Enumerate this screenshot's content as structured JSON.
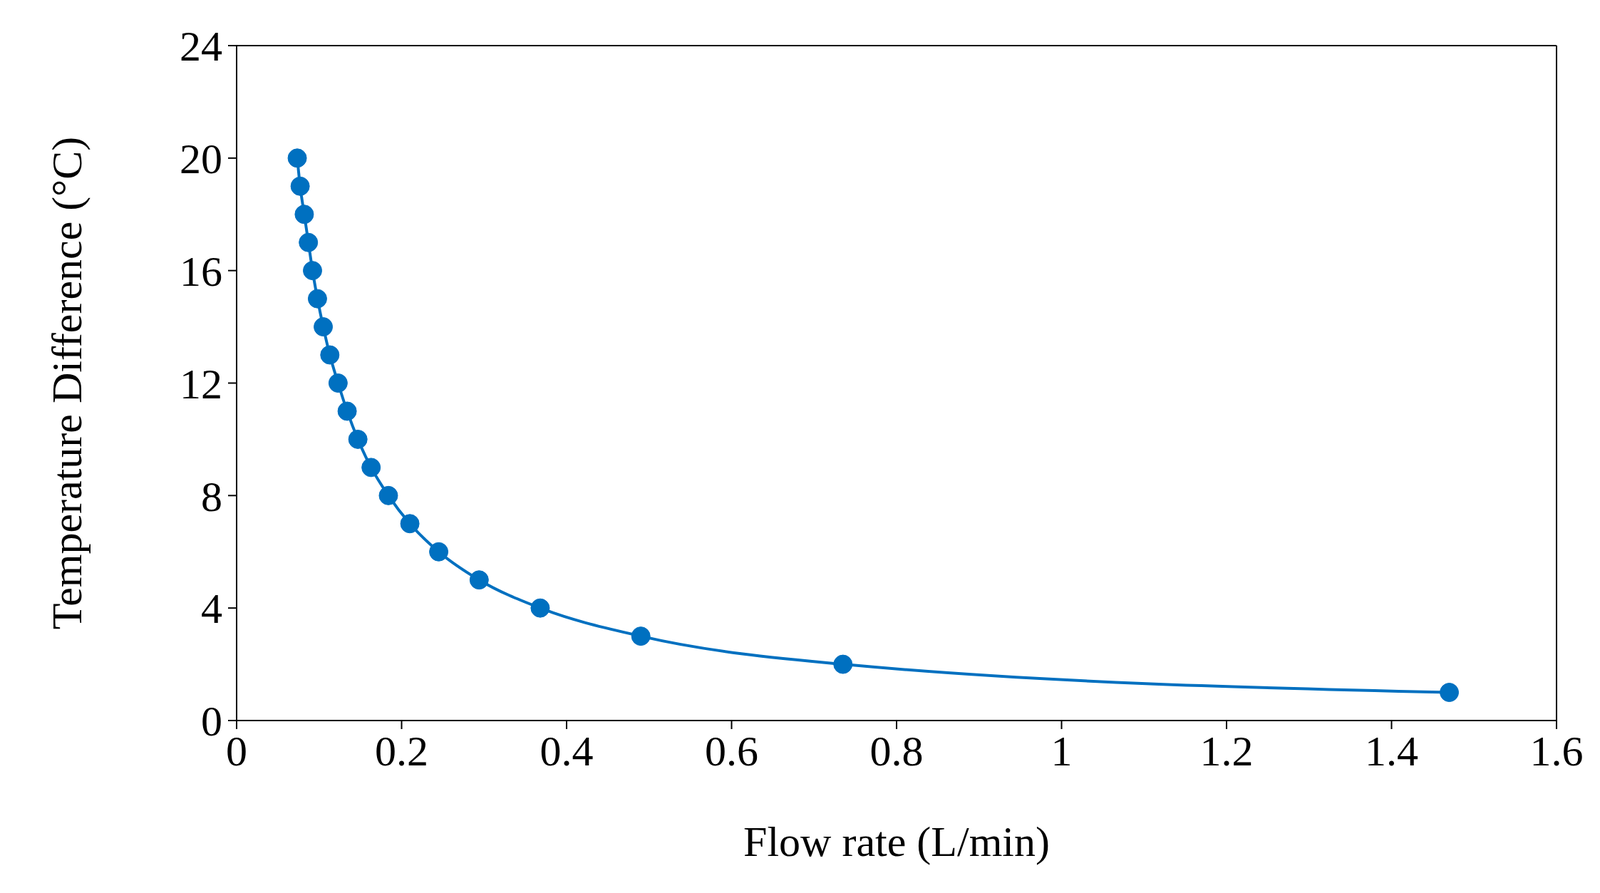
{
  "chart_data": {
    "type": "line",
    "x_label": "Flow rate (L/min)",
    "y_label": "Temperature Difference (°C)",
    "x": [
      0.0735,
      0.077,
      0.082,
      0.087,
      0.092,
      0.098,
      0.105,
      0.113,
      0.123,
      0.134,
      0.147,
      0.163,
      0.184,
      0.21,
      0.245,
      0.294,
      0.368,
      0.49,
      0.735,
      1.47
    ],
    "values": [
      20,
      19,
      18,
      17,
      16,
      15,
      14,
      13,
      12,
      11,
      10,
      9,
      8,
      7,
      6,
      5,
      4,
      3,
      2,
      1
    ],
    "color": "#0070c0",
    "marker": "circle",
    "line_style": "solid",
    "xlim": [
      0,
      1.6
    ],
    "xticks": [
      0,
      0.2,
      0.4,
      0.6,
      0.8,
      1,
      1.2,
      1.4,
      1.6
    ],
    "ylim": [
      0,
      24
    ],
    "yticks": [
      0,
      4,
      8,
      12,
      16,
      20,
      24
    ],
    "grid": false
  }
}
